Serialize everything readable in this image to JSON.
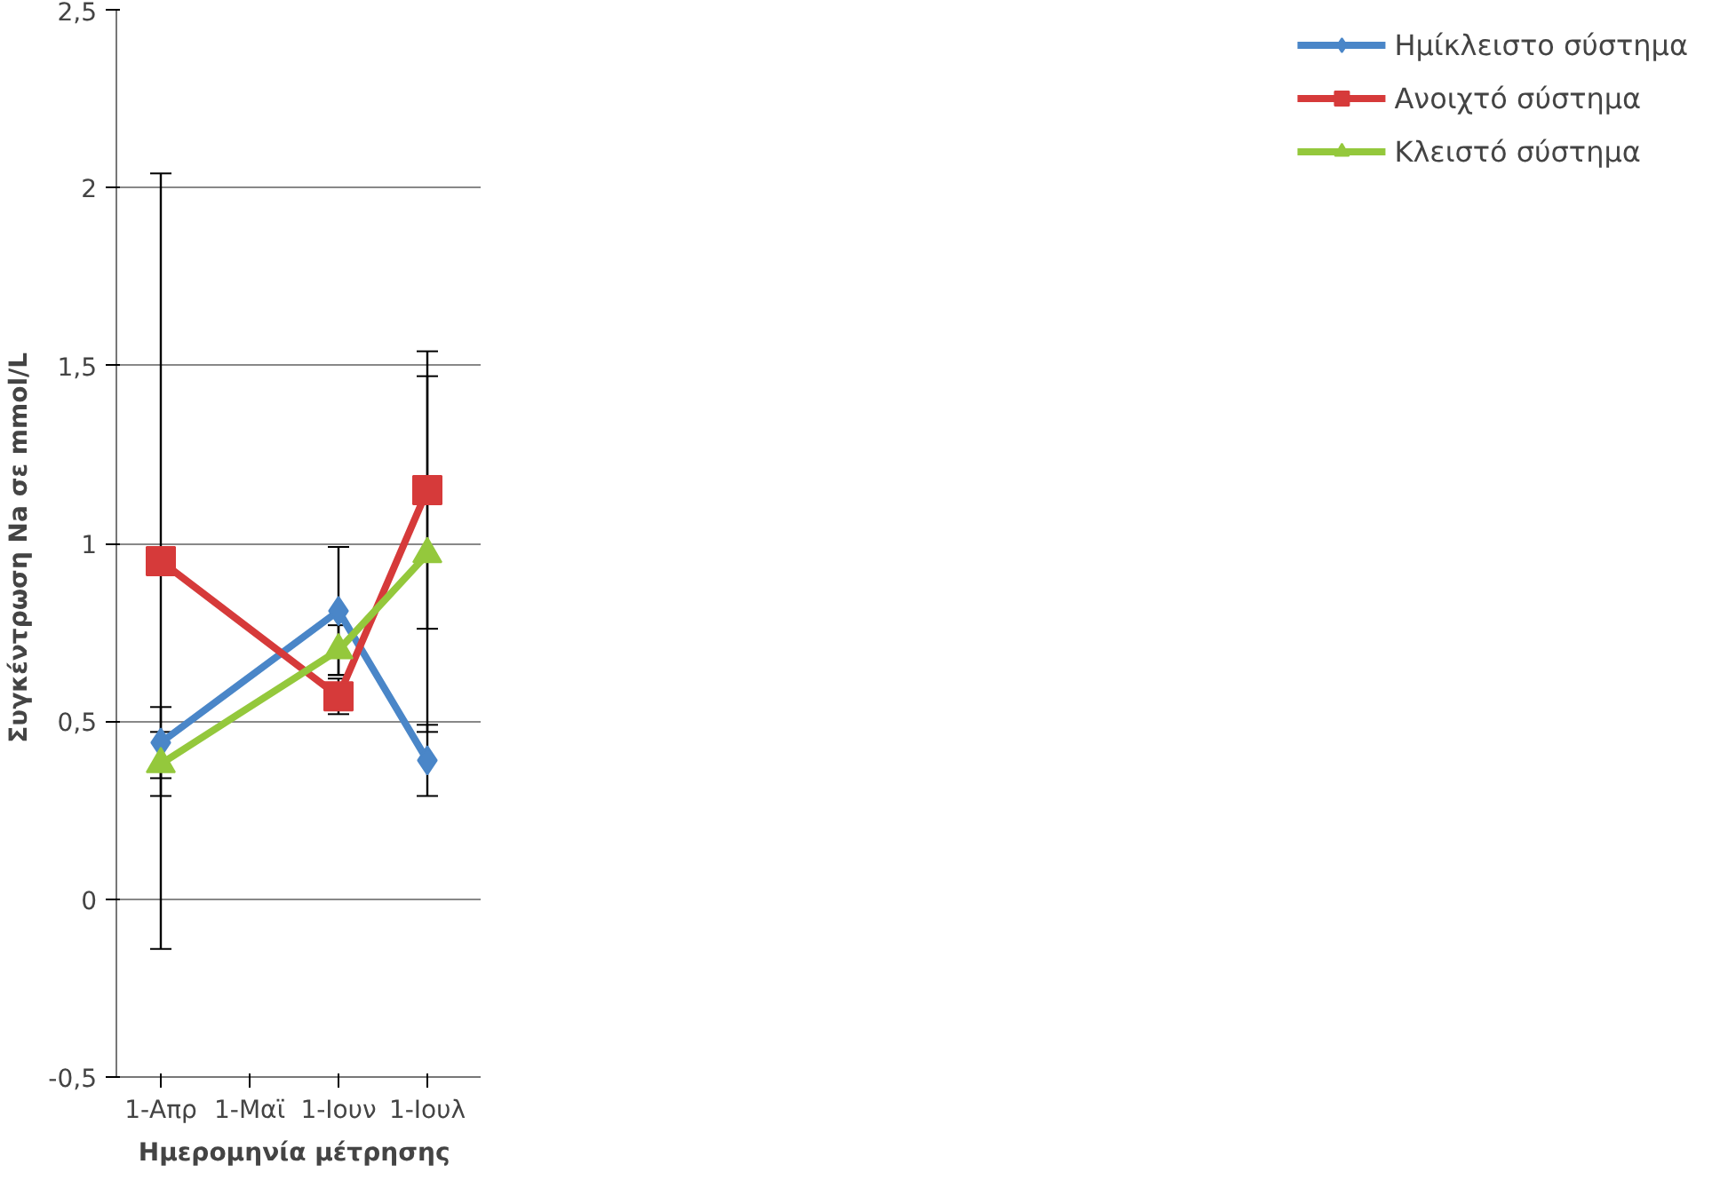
{
  "chart_data": {
    "type": "line",
    "xlabel": "Ημερομηνία  μέτρησης",
    "ylabel": "Συγκέντρωση  Na σε mmol/L",
    "categories": [
      "1-Απρ",
      "1-Μαϊ",
      "1-Ιουν",
      "1-Ιουλ"
    ],
    "series": [
      {
        "name": "Ημίκλειστο σύστημα",
        "color": "#4a86c8",
        "marker": "diamond",
        "values": [
          0.44,
          null,
          0.81,
          0.39
        ],
        "errors": [
          0.1,
          null,
          0.18,
          0.1
        ]
      },
      {
        "name": "Ανοιχτό σύστημα",
        "color": "#d63a3a",
        "marker": "square",
        "values": [
          0.95,
          null,
          0.57,
          1.15
        ],
        "errors": [
          1.09,
          null,
          0.05,
          0.39
        ]
      },
      {
        "name": "Κλειστό σύστημα",
        "color": "#94c83c",
        "marker": "triangle",
        "values": [
          0.38,
          null,
          0.7,
          0.97
        ],
        "errors": [
          0.09,
          null,
          0.07,
          0.5
        ]
      }
    ],
    "ylim": [
      -0.5,
      2.5
    ],
    "yticks": [
      {
        "value": -0.5,
        "label": "-0,5"
      },
      0,
      {
        "value": 0.5,
        "label": "0,5"
      },
      1,
      {
        "value": 1.5,
        "label": "1,5"
      },
      2,
      {
        "value": 2.5,
        "label": "2,5"
      }
    ],
    "grid": "y",
    "legend": "right"
  }
}
